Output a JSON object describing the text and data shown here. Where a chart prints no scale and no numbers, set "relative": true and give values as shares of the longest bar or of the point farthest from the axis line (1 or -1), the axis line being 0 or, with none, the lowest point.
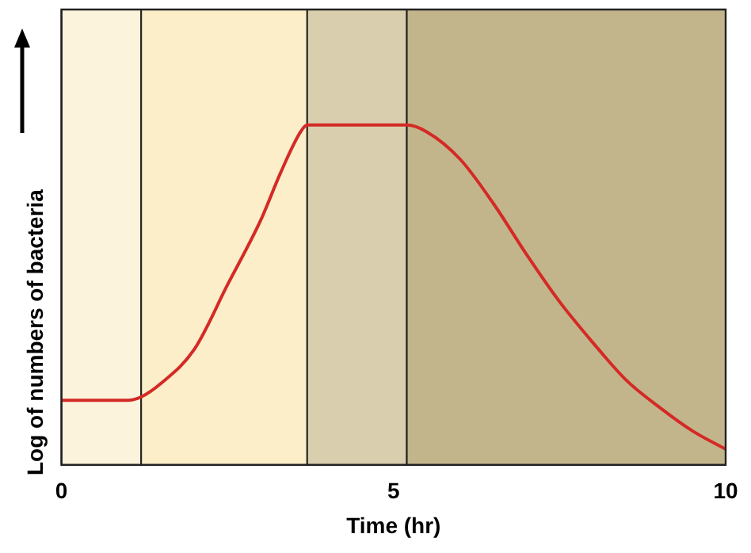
{
  "chart_data": {
    "type": "line",
    "xlabel": "Time (hr)",
    "ylabel": "Log of numbers of bacteria",
    "relative": true,
    "xlim": [
      0,
      10
    ],
    "xticks": [
      0,
      5,
      10
    ],
    "grid": false,
    "legend": false,
    "marker": "none",
    "line_style": "solid",
    "x": [
      0,
      1,
      1.2,
      1.5,
      2,
      2.5,
      3,
      3.3,
      3.6,
      3.7,
      5.2,
      5.5,
      6,
      6.5,
      7,
      7.5,
      8,
      8.5,
      9,
      9.5,
      10
    ],
    "series": [
      {
        "color": "#d42a26",
        "values": [
          0.19,
          0.19,
          0.2,
          0.24,
          0.34,
          0.53,
          0.72,
          0.86,
          0.98,
          1,
          1,
          0.98,
          0.9,
          0.77,
          0.62,
          0.48,
          0.36,
          0.25,
          0.17,
          0.1,
          0.046
        ]
      }
    ],
    "bands": [
      {
        "axis": "x",
        "from": 0,
        "to": 1.2,
        "color": "#fcf3dc"
      },
      {
        "axis": "x",
        "from": 1.2,
        "to": 3.7,
        "color": "#fbeec8"
      },
      {
        "axis": "x",
        "from": 3.7,
        "to": 5.2,
        "color": "#d9cfae"
      },
      {
        "axis": "x",
        "from": 5.2,
        "to": 10,
        "color": "#c3b58b"
      }
    ]
  }
}
